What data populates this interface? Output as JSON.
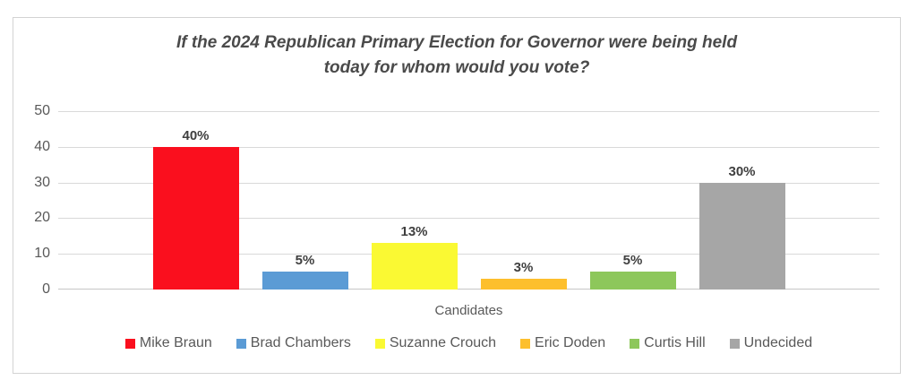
{
  "chart": {
    "title_line1": "If the 2024 Republican Primary Election for Governor were being held",
    "title_line2": "today for whom would you vote?"
  },
  "chart_data": {
    "type": "bar",
    "title": "If the 2024 Republican Primary Election for Governor were being held today for whom would you vote?",
    "xlabel": "Candidates",
    "ylabel": "",
    "ylim": [
      0,
      50
    ],
    "yticks": [
      0,
      10,
      20,
      30,
      40,
      50
    ],
    "grid": true,
    "legend_position": "bottom",
    "categories": [
      "Mike Braun",
      "Brad Chambers",
      "Suzanne Crouch",
      "Eric Doden",
      "Curtis Hill",
      "Undecided"
    ],
    "values": [
      40,
      5,
      13,
      3,
      5,
      30
    ],
    "data_labels": [
      "40%",
      "5%",
      "13%",
      "3%",
      "5%",
      "30%"
    ],
    "colors": [
      "#fa0f1e",
      "#5b9bd5",
      "#faf933",
      "#fdbf2d",
      "#8dc75b",
      "#a6a6a6"
    ],
    "colors_meta": {
      "title_text": "#4a4a4a",
      "axis_text": "#595959",
      "data_label_text": "#3f3f3f",
      "gridline": "#d9d9d9",
      "chart_border": "#d3d3d3"
    }
  }
}
